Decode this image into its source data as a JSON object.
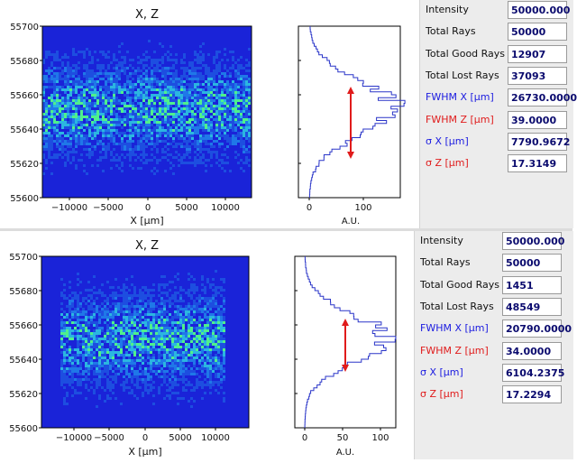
{
  "panels": [
    {
      "heatmap_title": "X, Z",
      "x_axis_label": "X [μm]",
      "hist_axis_label": "A.U.",
      "y_ticks": [
        "55700",
        "55680",
        "55660",
        "55640",
        "55620",
        "55600"
      ],
      "x_ticks": [
        "−10000",
        "−5000",
        "0",
        "5000",
        "10000"
      ],
      "hist_ticks": [
        "0",
        "100"
      ],
      "fields": [
        {
          "label": "Intensity",
          "value": "50000.000",
          "color": "#111111"
        },
        {
          "label": "Total Rays",
          "value": "50000",
          "color": "#111111"
        },
        {
          "label": "Total Good Rays",
          "value": "12907",
          "color": "#111111"
        },
        {
          "label": "Total Lost Rays",
          "value": "37093",
          "color": "#111111"
        },
        {
          "label": "FWHM  X [μm]",
          "value": "26730.0000",
          "color": "#1b1be0"
        },
        {
          "label": "FWHM  Z [μm]",
          "value": "39.0000",
          "color": "#e01b1b"
        },
        {
          "label": "σ  X [μm]",
          "value": "7790.9672",
          "color": "#1b1be0"
        },
        {
          "label": "σ  Z [μm]",
          "value": "17.3149",
          "color": "#e01b1b"
        }
      ]
    },
    {
      "heatmap_title": "X, Z",
      "x_axis_label": "X [μm]",
      "hist_axis_label": "A.U.",
      "y_ticks": [
        "55700",
        "55680",
        "55660",
        "55640",
        "55620",
        "55600"
      ],
      "x_ticks": [
        "−10000",
        "−5000",
        "0",
        "5000",
        "10000"
      ],
      "hist_ticks": [
        "0",
        "50",
        "100"
      ],
      "fields": [
        {
          "label": "Intensity",
          "value": "50000.000",
          "color": "#111111"
        },
        {
          "label": "Total Rays",
          "value": "50000",
          "color": "#111111"
        },
        {
          "label": "Total Good Rays",
          "value": "1451",
          "color": "#111111"
        },
        {
          "label": "Total Lost Rays",
          "value": "48549",
          "color": "#111111"
        },
        {
          "label": "FWHM  X [μm]",
          "value": "20790.0000",
          "color": "#1b1be0"
        },
        {
          "label": "FWHM  Z [μm]",
          "value": "34.0000",
          "color": "#e01b1b"
        },
        {
          "label": "σ  X [μm]",
          "value": "6104.2375",
          "color": "#1b1be0"
        },
        {
          "label": "σ  Z [μm]",
          "value": "17.2294",
          "color": "#e01b1b"
        }
      ]
    }
  ],
  "colors": {
    "background_blue": "#1a23d8",
    "hist_line": "#2a35c8",
    "fwhm_arrow": "#e01b1b"
  }
}
